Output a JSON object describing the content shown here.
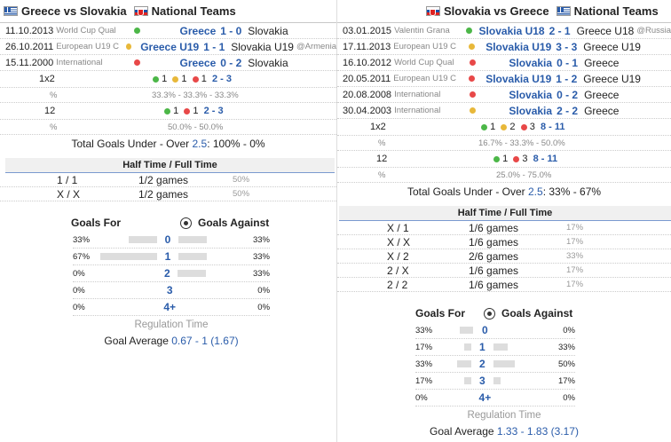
{
  "left": {
    "title_home": "Greece",
    "title_vs": "vs",
    "title_away": "Slovakia",
    "title_section": "National Teams",
    "matches": [
      {
        "date": "11.10.2013",
        "comp": "World Cup Qual",
        "home": "Greece",
        "score": "1 - 0",
        "away": "Slovakia",
        "note": "",
        "dot": "green"
      },
      {
        "date": "26.10.2011",
        "comp": "European U19 C",
        "home": "Greece U19",
        "score": "1 - 1",
        "away": "Slovakia U19",
        "note": "@Armenia",
        "dot": "yellow"
      },
      {
        "date": "15.11.2000",
        "comp": "International",
        "home": "Greece",
        "score": "0 - 2",
        "away": "Slovakia",
        "note": "",
        "dot": "red"
      }
    ],
    "stats": {
      "x12_label": "1x2",
      "x12_v1": "1",
      "x12_v2": "1",
      "x12_v3": "1",
      "x12_total": "2 - 3",
      "x12_pct": "33.3% - 33.3% - 33.3%",
      "s12_label": "12",
      "s12_v1": "1",
      "s12_v2": "1",
      "s12_total": "2 - 3",
      "s12_pct": "50.0% - 50.0%",
      "pct_sign": "%",
      "under_over_prefix": "Total Goals Under - Over",
      "under_over_value": "2.5",
      "under_over_suffix": ": 100% - 0%"
    },
    "htft_title": "Half Time / Full Time",
    "htft": [
      {
        "res": "1 / 1",
        "games": "1/2 games",
        "pct": "50%"
      },
      {
        "res": "X / X",
        "games": "1/2 games",
        "pct": "50%"
      }
    ],
    "goals": {
      "for_label": "Goals For",
      "against_label": "Goals Against",
      "rows": [
        {
          "for_pct": "33%",
          "for_frac": 0.33,
          "num": "0",
          "against_frac": 0.33,
          "against_pct": "33%"
        },
        {
          "for_pct": "67%",
          "for_frac": 0.67,
          "num": "1",
          "against_frac": 0.33,
          "against_pct": "33%"
        },
        {
          "for_pct": "0%",
          "for_frac": 0,
          "num": "2",
          "against_frac": 0.33,
          "against_pct": "33%"
        },
        {
          "for_pct": "0%",
          "for_frac": 0,
          "num": "3",
          "against_frac": 0,
          "against_pct": "0%"
        },
        {
          "for_pct": "0%",
          "for_frac": 0,
          "num": "4+",
          "against_frac": 0,
          "against_pct": "0%"
        }
      ],
      "regulation": "Regulation Time",
      "avg_label": "Goal Average",
      "avg_value": "0.67 - 1 (1.67)"
    }
  },
  "right": {
    "title_home": "Slovakia",
    "title_vs": "vs",
    "title_away": "Greece",
    "title_section": "National Teams",
    "matches": [
      {
        "date": "03.01.2015",
        "comp": "Valentin Grana",
        "home": "Slovakia U18",
        "score": "2 - 1",
        "away": "Greece U18",
        "note": "@Russia",
        "dot": "green"
      },
      {
        "date": "17.11.2013",
        "comp": "European U19 C",
        "home": "Slovakia U19",
        "score": "3 - 3",
        "away": "Greece U19",
        "note": "",
        "dot": "yellow"
      },
      {
        "date": "16.10.2012",
        "comp": "World Cup Qual",
        "home": "Slovakia",
        "score": "0 - 1",
        "away": "Greece",
        "note": "",
        "dot": "red"
      },
      {
        "date": "20.05.2011",
        "comp": "European U19 C",
        "home": "Slovakia U19",
        "score": "1 - 2",
        "away": "Greece U19",
        "note": "",
        "dot": "red"
      },
      {
        "date": "20.08.2008",
        "comp": "International",
        "home": "Slovakia",
        "score": "0 - 2",
        "away": "Greece",
        "note": "",
        "dot": "red"
      },
      {
        "date": "30.04.2003",
        "comp": "International",
        "home": "Slovakia",
        "score": "2 - 2",
        "away": "Greece",
        "note": "",
        "dot": "yellow"
      }
    ],
    "stats": {
      "x12_label": "1x2",
      "x12_v1": "1",
      "x12_v2": "2",
      "x12_v3": "3",
      "x12_total": "8 - 11",
      "x12_pct": "16.7% - 33.3% - 50.0%",
      "s12_label": "12",
      "s12_v1": "1",
      "s12_v2": "3",
      "s12_total": "8 - 11",
      "s12_pct": "25.0% - 75.0%",
      "pct_sign": "%",
      "under_over_prefix": "Total Goals Under - Over",
      "under_over_value": "2.5",
      "under_over_suffix": ": 33% - 67%"
    },
    "htft_title": "Half Time / Full Time",
    "htft": [
      {
        "res": "X / 1",
        "games": "1/6 games",
        "pct": "17%"
      },
      {
        "res": "X / X",
        "games": "1/6 games",
        "pct": "17%"
      },
      {
        "res": "X / 2",
        "games": "2/6 games",
        "pct": "33%"
      },
      {
        "res": "2 / X",
        "games": "1/6 games",
        "pct": "17%"
      },
      {
        "res": "2 / 2",
        "games": "1/6 games",
        "pct": "17%"
      }
    ],
    "goals": {
      "for_label": "Goals For",
      "against_label": "Goals Against",
      "rows": [
        {
          "for_pct": "33%",
          "for_frac": 0.33,
          "num": "0",
          "against_frac": 0,
          "against_pct": "0%"
        },
        {
          "for_pct": "17%",
          "for_frac": 0.17,
          "num": "1",
          "against_frac": 0.33,
          "against_pct": "33%"
        },
        {
          "for_pct": "33%",
          "for_frac": 0.33,
          "num": "2",
          "against_frac": 0.5,
          "against_pct": "50%"
        },
        {
          "for_pct": "17%",
          "for_frac": 0.17,
          "num": "3",
          "against_frac": 0.17,
          "against_pct": "17%"
        },
        {
          "for_pct": "0%",
          "for_frac": 0,
          "num": "4+",
          "against_frac": 0,
          "against_pct": "0%"
        }
      ],
      "regulation": "Regulation Time",
      "avg_label": "Goal Average",
      "avg_value": "1.33 - 1.83 (3.17)"
    }
  }
}
